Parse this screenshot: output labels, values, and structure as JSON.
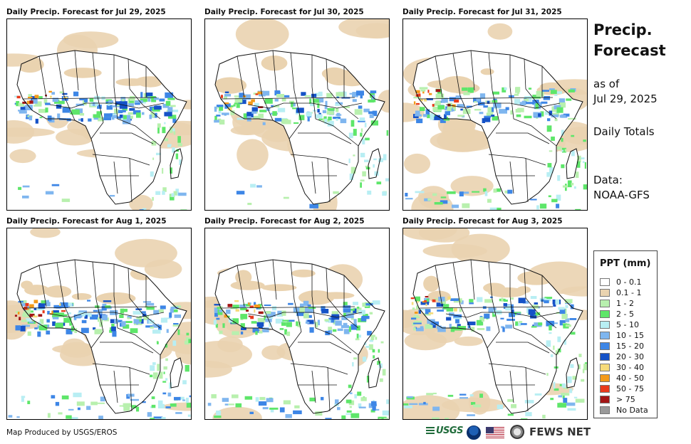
{
  "panels": [
    {
      "title": "Daily Precip. Forecast for Jul 29, 2025"
    },
    {
      "title": "Daily Precip. Forecast for Jul 30, 2025"
    },
    {
      "title": "Daily Precip. Forecast for Jul 31, 2025"
    },
    {
      "title": "Daily Precip. Forecast for Aug 1, 2025"
    },
    {
      "title": "Daily Precip. Forecast for Aug 2, 2025"
    },
    {
      "title": "Daily Precip. Forecast for Aug 3, 2025"
    }
  ],
  "sidebar": {
    "title_line1": "Precip.",
    "title_line2": "Forecast",
    "as_of_label": "as of",
    "as_of_date": "Jul 29, 2025",
    "totals": "Daily Totals",
    "data_label": "Data:",
    "data_source": "NOAA-GFS"
  },
  "legend": {
    "title": "PPT (mm)",
    "items": [
      {
        "label": "0 - 0.1",
        "color": "#ffffff"
      },
      {
        "label": "0.1 - 1",
        "color": "#ead3b0"
      },
      {
        "label": "1 - 2",
        "color": "#b8f0ae"
      },
      {
        "label": "2 - 5",
        "color": "#5ee66a"
      },
      {
        "label": "5 - 10",
        "color": "#b8eef3"
      },
      {
        "label": "10 - 15",
        "color": "#7fb6ef"
      },
      {
        "label": "15 - 20",
        "color": "#3d86e6"
      },
      {
        "label": "20 - 30",
        "color": "#1552c7"
      },
      {
        "label": "30 - 40",
        "color": "#f6db7a"
      },
      {
        "label": "40 - 50",
        "color": "#f39a1a"
      },
      {
        "label": "50 - 75",
        "color": "#e83a1c"
      },
      {
        "label": "> 75",
        "color": "#a31515"
      },
      {
        "label": "No Data",
        "color": "#9a9a9a"
      }
    ]
  },
  "footer": {
    "credit": "Map Produced by USGS/EROS",
    "usgs_label": "USGS",
    "fews_label": "FEWS NET"
  }
}
